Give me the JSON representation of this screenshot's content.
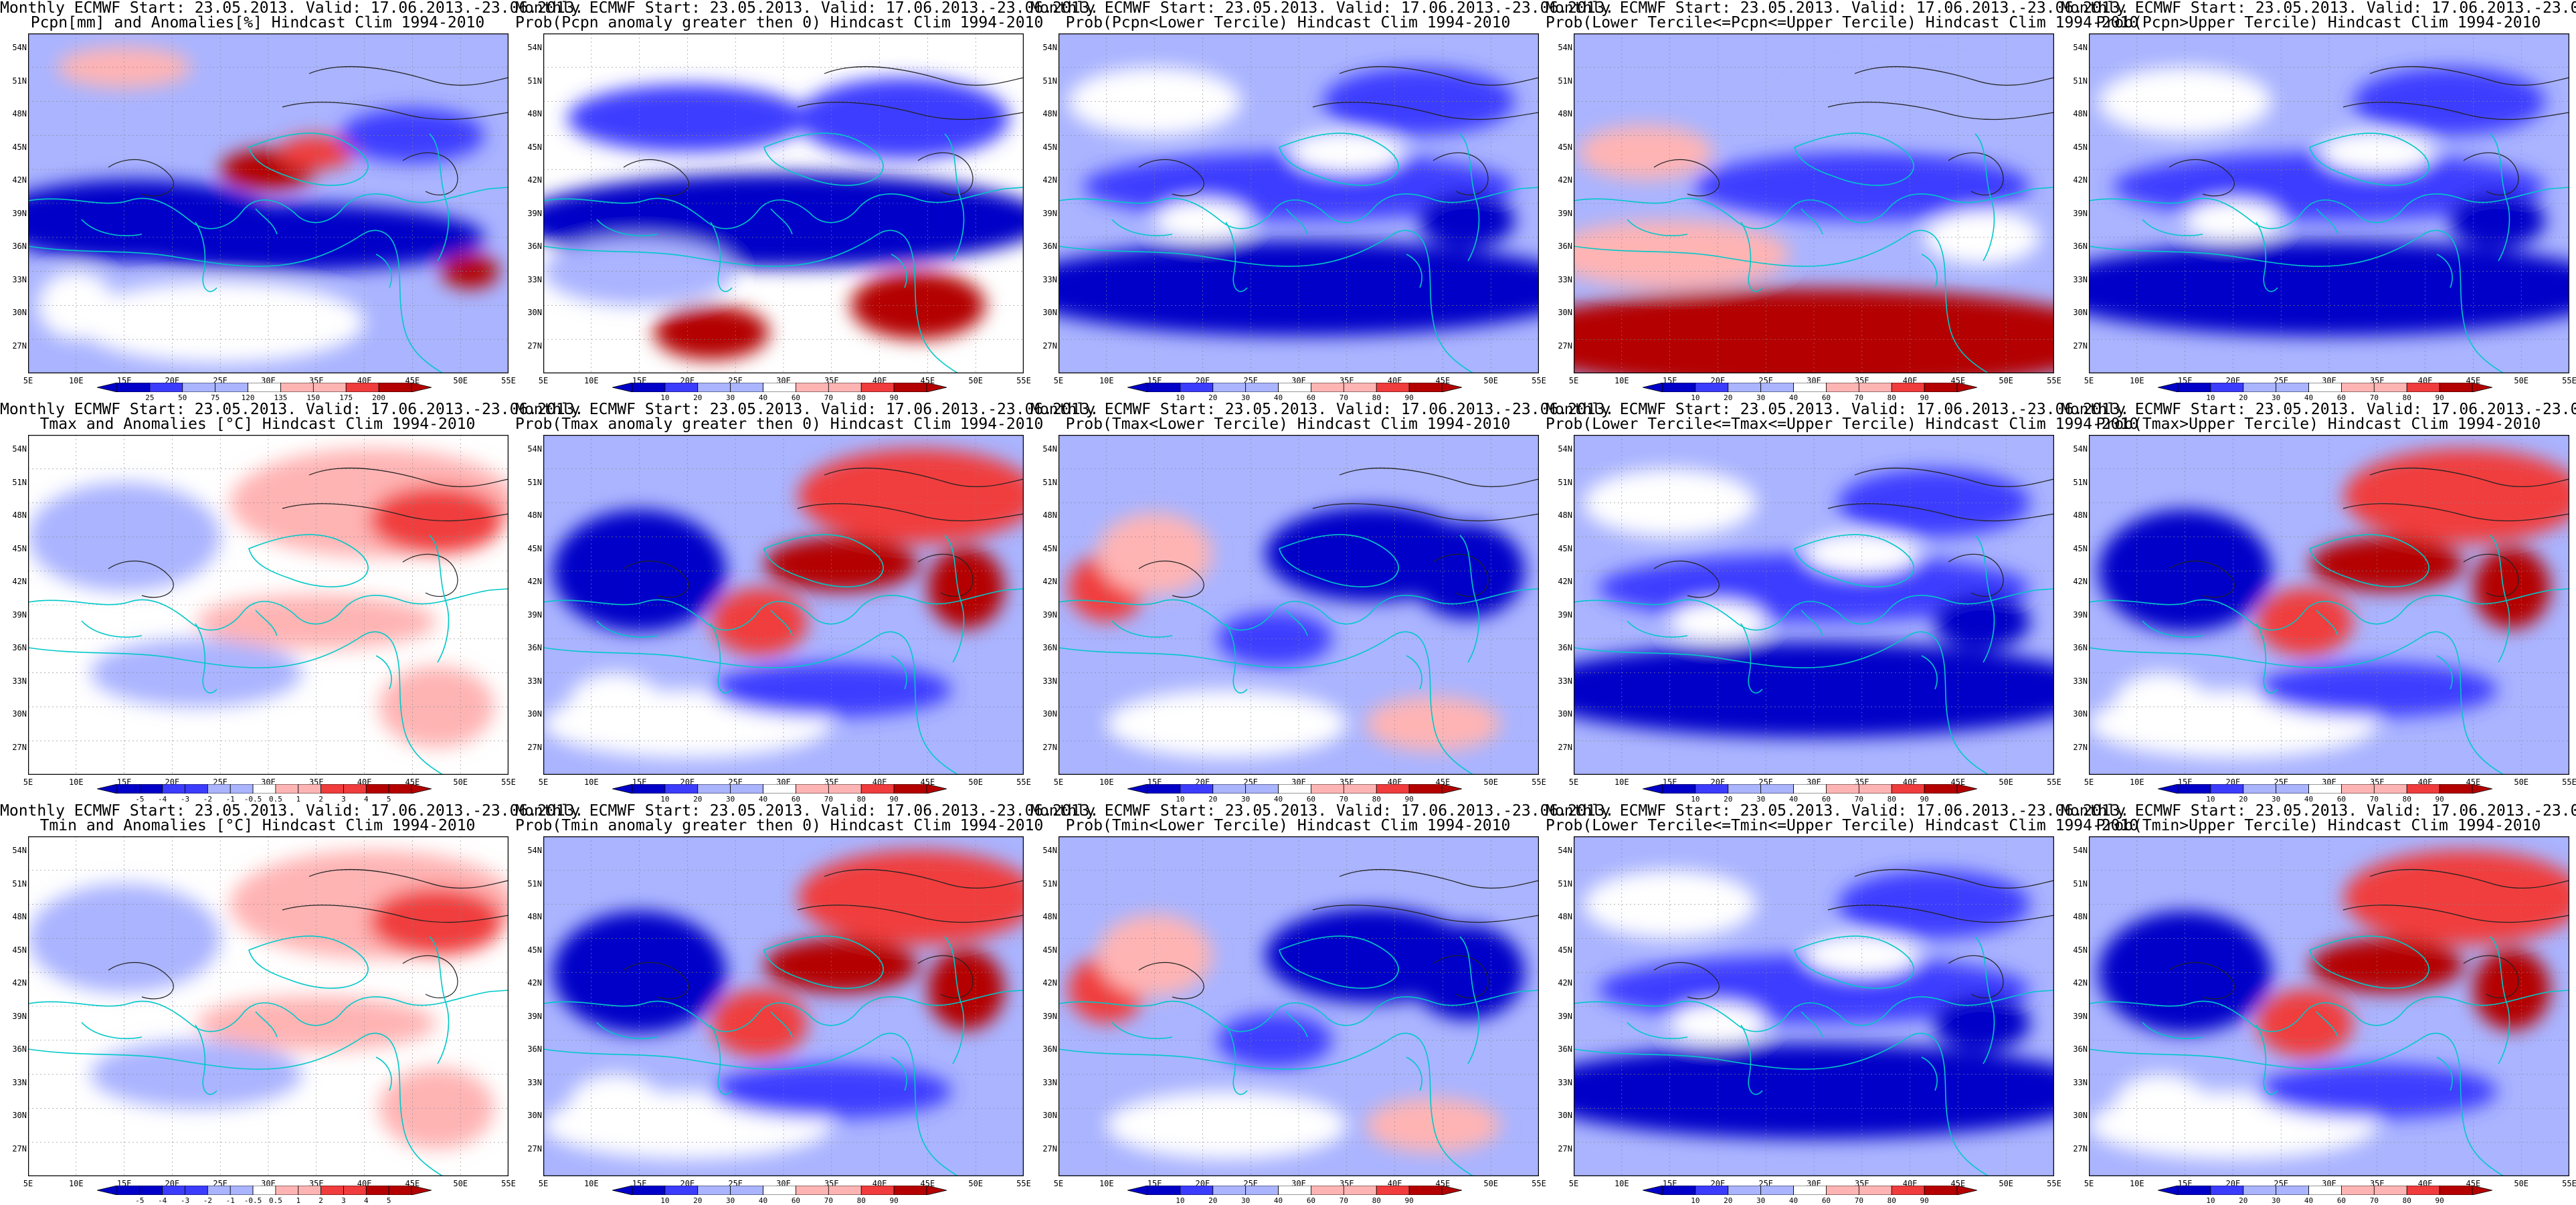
{
  "title_line1": "Monthly ECMWF Start: 23.05.2013. Valid: 17.06.2013.-23.06.2013.",
  "lat_labels": [
    "54N",
    "51N",
    "48N",
    "45N",
    "42N",
    "39N",
    "36N",
    "33N",
    "30N",
    "27N"
  ],
  "lon_labels": [
    "5E",
    "10E",
    "15E",
    "20E",
    "25E",
    "30E",
    "35E",
    "40E",
    "45E",
    "50E",
    "55E"
  ],
  "colors": {
    "deep_blue": "#0000c8",
    "blue": "#3c3cff",
    "light_blue": "#aab4ff",
    "white": "#ffffff",
    "pink": "#ffb4b4",
    "red": "#f03c3c",
    "dark_red": "#b40000",
    "coast": "#00c8c8"
  },
  "colorbars": {
    "pcpn": [
      "25",
      "50",
      "75",
      "120",
      "135",
      "150",
      "175",
      "200"
    ],
    "prob": [
      "10",
      "20",
      "30",
      "40",
      "60",
      "70",
      "80",
      "90"
    ],
    "temp": [
      "-5",
      "-4",
      "-3",
      "-2",
      "-1",
      "-0.5",
      "0.5",
      "1",
      "2",
      "3",
      "4",
      "5"
    ]
  },
  "panels": [
    {
      "line2": "Pcpn[mm] and Anomalies[%] Hindcast Clim 1994-2010",
      "cbar": "pcpn",
      "pattern": "precip"
    },
    {
      "line2": "Prob(Pcpn anomaly greater then 0) Hindcast Clim 1994-2010",
      "cbar": "prob",
      "pattern": "precip_pos"
    },
    {
      "line2": "Prob(Pcpn<Lower Tercile) Hindcast Clim 1994-2010",
      "cbar": "prob",
      "pattern": "blue_mix"
    },
    {
      "line2": "Prob(Lower Tercile<=Pcpn<=Upper Tercile) Hindcast Clim 1994-2010",
      "cbar": "prob",
      "pattern": "red_south"
    },
    {
      "line2": "Prob(Pcpn>Upper Tercile) Hindcast Clim 1994-2010",
      "cbar": "prob",
      "pattern": "blue_mix"
    },
    {
      "line2": "Tmax and Anomalies [°C] Hindcast Clim 1994-2010",
      "cbar": "temp",
      "pattern": "temp_anom"
    },
    {
      "line2": "Prob(Tmax anomaly greater then 0) Hindcast Clim 1994-2010",
      "cbar": "prob",
      "pattern": "warm_east"
    },
    {
      "line2": "Prob(Tmax<Lower Tercile) Hindcast Clim 1994-2010",
      "cbar": "prob",
      "pattern": "cold_east"
    },
    {
      "line2": "Prob(Lower Tercile<=Tmax<=Upper Tercile) Hindcast Clim 1994-2010",
      "cbar": "prob",
      "pattern": "blue_mix"
    },
    {
      "line2": "Prob(Tmax>Upper Tercile) Hindcast Clim 1994-2010",
      "cbar": "prob",
      "pattern": "warm_east"
    },
    {
      "line2": "Tmin and Anomalies [°C] Hindcast Clim 1994-2010",
      "cbar": "temp",
      "pattern": "temp_anom"
    },
    {
      "line2": "Prob(Tmin anomaly greater then 0) Hindcast Clim 1994-2010",
      "cbar": "prob",
      "pattern": "warm_east"
    },
    {
      "line2": "Prob(Tmin<Lower Tercile) Hindcast Clim 1994-2010",
      "cbar": "prob",
      "pattern": "cold_east"
    },
    {
      "line2": "Prob(Lower Tercile<=Tmin<=Upper Tercile) Hindcast Clim 1994-2010",
      "cbar": "prob",
      "pattern": "blue_mix"
    },
    {
      "line2": "Prob(Tmin>Upper Tercile) Hindcast Clim 1994-2010",
      "cbar": "prob",
      "pattern": "warm_east"
    }
  ]
}
